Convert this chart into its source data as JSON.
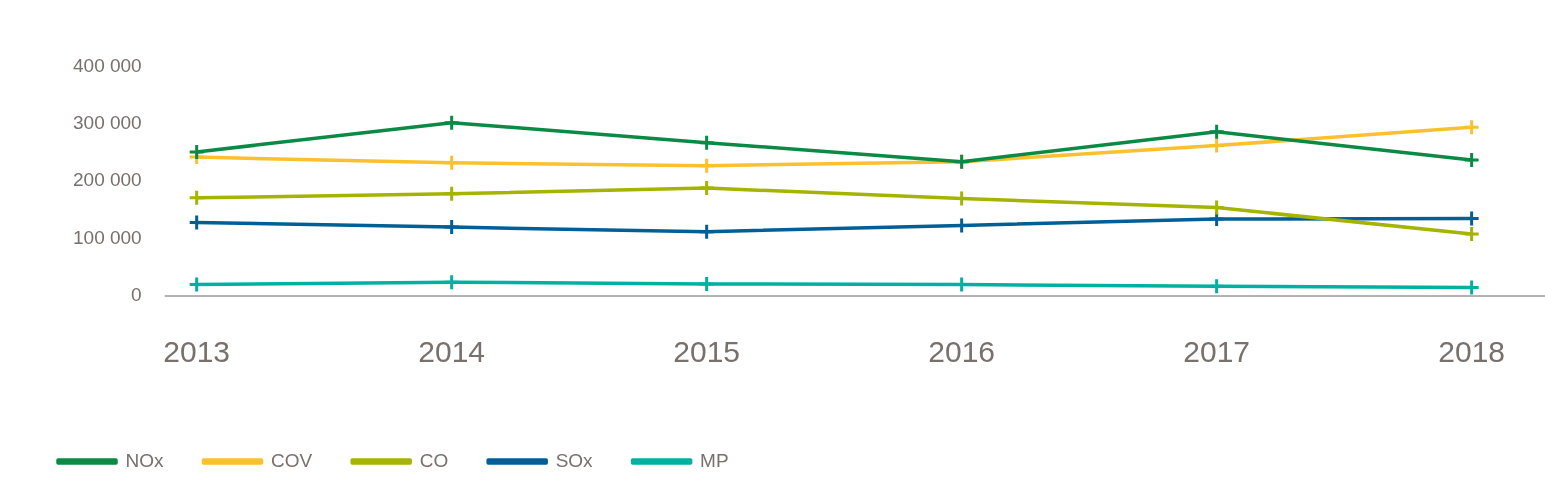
{
  "chart_data": {
    "type": "line",
    "categories": [
      "2013",
      "2014",
      "2015",
      "2016",
      "2017",
      "2018"
    ],
    "series": [
      {
        "name": "NOx",
        "color": "#0a8a45",
        "values": [
          251000,
          302000,
          267000,
          234000,
          286000,
          237000
        ]
      },
      {
        "name": "COV",
        "color": "#fbc02d",
        "values": [
          242000,
          232000,
          227000,
          234000,
          262000,
          294000
        ]
      },
      {
        "name": "CO",
        "color": "#a4b400",
        "values": [
          171000,
          178000,
          188000,
          170000,
          154000,
          108000
        ]
      },
      {
        "name": "SOx",
        "color": "#005f96",
        "values": [
          128000,
          120000,
          112000,
          123000,
          134000,
          135000
        ]
      },
      {
        "name": "MP",
        "color": "#00b0a0",
        "values": [
          20000,
          24000,
          21000,
          20000,
          17000,
          15000
        ]
      }
    ],
    "ylim": [
      0,
      400000
    ],
    "yticks": [
      {
        "value": 0,
        "label": "0"
      },
      {
        "value": 100000,
        "label": "100 000"
      },
      {
        "value": 200000,
        "label": "200 000"
      },
      {
        "value": 300000,
        "label": "300 000"
      },
      {
        "value": 400000,
        "label": "400 000"
      }
    ],
    "grid": false,
    "legend": "bottom left",
    "marker": "cross",
    "line_style": "solid"
  }
}
